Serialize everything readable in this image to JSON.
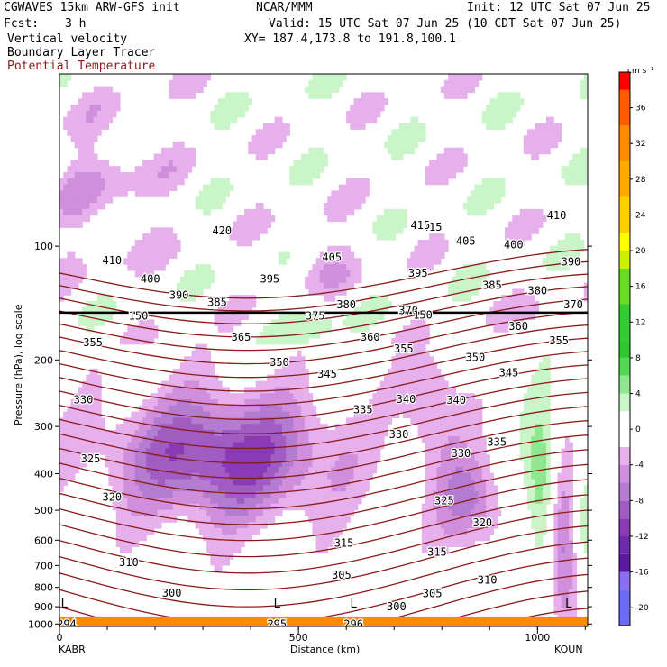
{
  "header": {
    "model": "CGWAVES 15km ARW-GFS init",
    "org": "NCAR/MMM",
    "init": "Init: 12 UTC Sat 07 Jun 25",
    "fcst_label": "Fcst:",
    "fcst_value": "3 h",
    "valid": "Valid: 15 UTC Sat 07 Jun 25 (10 CDT Sat 07 Jun 25)",
    "field1": "Vertical velocity",
    "field2": "Boundary Layer Tracer",
    "field3": "Potential Temperature",
    "xy": "XY= 187.4,173.8 to 191.8,100.1"
  },
  "colors": {
    "theta": "#8b1a1a",
    "field3_text": "#8b1a1a",
    "terrain": "#ff8c00",
    "frame": "#000000"
  },
  "chart_data": {
    "type": "heatmap",
    "title": "Vertical velocity",
    "xlabel": "Distance (km)",
    "ylabel": "Pressure (hPa), log scale",
    "x_ticks": [
      "0",
      "500",
      "1000"
    ],
    "x_range": [
      0,
      1105
    ],
    "y_ticks": [
      "100",
      "200",
      "300",
      "400",
      "500",
      "600",
      "700",
      "800",
      "900",
      "1000"
    ],
    "y_scale": "log",
    "y_range_hpa": [
      1015,
      35
    ],
    "start_label": "KABR",
    "end_label": "KOUN",
    "tropopause_hpa": 150,
    "colorbar": {
      "unit": "cm s⁻¹",
      "tick_labels": [
        "36",
        "32",
        "28",
        "24",
        "20",
        "16",
        "12",
        "8",
        "4",
        "0",
        "-4",
        "-8",
        "-12",
        "-16",
        "-20"
      ],
      "tick_values": [
        36,
        32,
        28,
        24,
        20,
        16,
        12,
        8,
        4,
        0,
        -4,
        -8,
        -12,
        -16,
        -20
      ],
      "levels": [
        {
          "lo": -22,
          "color": "#6a6af5"
        },
        {
          "lo": -18,
          "color": "#8a70f0"
        },
        {
          "lo": -16,
          "color": "#5a1aa0"
        },
        {
          "lo": -14,
          "color": "#6e2aa8"
        },
        {
          "lo": -12,
          "color": "#8a3ab5"
        },
        {
          "lo": -10,
          "color": "#a05cc2"
        },
        {
          "lo": -8,
          "color": "#b47cd0"
        },
        {
          "lo": -6,
          "color": "#cf8fdc"
        },
        {
          "lo": -4,
          "color": "#e6b0ec"
        },
        {
          "lo": -2,
          "color": "#ffffff"
        },
        {
          "lo": 2,
          "color": "#c9f5c9"
        },
        {
          "lo": 4,
          "color": "#8fe88f"
        },
        {
          "lo": 6,
          "color": "#55d855"
        },
        {
          "lo": 8,
          "color": "#2ec82e"
        },
        {
          "lo": 10,
          "color": "#33cc33"
        },
        {
          "lo": 14,
          "color": "#66dd22"
        },
        {
          "lo": 18,
          "color": "#ccee00"
        },
        {
          "lo": 20,
          "color": "#ffff00"
        },
        {
          "lo": 22,
          "color": "#ffd000"
        },
        {
          "lo": 26,
          "color": "#ffaa00"
        },
        {
          "lo": 30,
          "color": "#ff8c00"
        },
        {
          "lo": 34,
          "color": "#ff5a00"
        },
        {
          "lo": 38,
          "color": "#ff0000"
        }
      ]
    },
    "theta_labels": [
      {
        "text": "420",
        "x": 340,
        "p": 91
      },
      {
        "text": "415",
        "x": 780,
        "p": 89
      },
      {
        "text": "415",
        "x": 755,
        "p": 88
      },
      {
        "text": "410",
        "x": 110,
        "p": 109
      },
      {
        "text": "410",
        "x": 1040,
        "p": 83
      },
      {
        "text": "405",
        "x": 570,
        "p": 107
      },
      {
        "text": "405",
        "x": 850,
        "p": 97
      },
      {
        "text": "400",
        "x": 190,
        "p": 122
      },
      {
        "text": "400",
        "x": 950,
        "p": 99
      },
      {
        "text": "395",
        "x": 440,
        "p": 122
      },
      {
        "text": "395",
        "x": 750,
        "p": 118
      },
      {
        "text": "390",
        "x": 250,
        "p": 135
      },
      {
        "text": "390",
        "x": 1070,
        "p": 110
      },
      {
        "text": "385",
        "x": 330,
        "p": 141
      },
      {
        "text": "385",
        "x": 905,
        "p": 127
      },
      {
        "text": "380",
        "x": 600,
        "p": 143
      },
      {
        "text": "380",
        "x": 1000,
        "p": 131
      },
      {
        "text": "375",
        "x": 535,
        "p": 153
      },
      {
        "text": "370",
        "x": 730,
        "p": 148
      },
      {
        "text": "370",
        "x": 1075,
        "p": 143
      },
      {
        "text": "365",
        "x": 380,
        "p": 174
      },
      {
        "text": "360",
        "x": 650,
        "p": 174
      },
      {
        "text": "360",
        "x": 960,
        "p": 163
      },
      {
        "text": "355",
        "x": 70,
        "p": 180
      },
      {
        "text": "355",
        "x": 720,
        "p": 187
      },
      {
        "text": "355",
        "x": 1045,
        "p": 178
      },
      {
        "text": "350",
        "x": 460,
        "p": 203
      },
      {
        "text": "350",
        "x": 870,
        "p": 197
      },
      {
        "text": "345",
        "x": 560,
        "p": 218
      },
      {
        "text": "345",
        "x": 940,
        "p": 216
      },
      {
        "text": "340",
        "x": 725,
        "p": 254
      },
      {
        "text": "340",
        "x": 830,
        "p": 256
      },
      {
        "text": "335",
        "x": 635,
        "p": 271
      },
      {
        "text": "335",
        "x": 915,
        "p": 330
      },
      {
        "text": "330",
        "x": 50,
        "p": 255
      },
      {
        "text": "330",
        "x": 710,
        "p": 315
      },
      {
        "text": "330",
        "x": 840,
        "p": 354
      },
      {
        "text": "325",
        "x": 65,
        "p": 365
      },
      {
        "text": "325",
        "x": 805,
        "p": 472
      },
      {
        "text": "320",
        "x": 110,
        "p": 462
      },
      {
        "text": "320",
        "x": 885,
        "p": 540
      },
      {
        "text": "315",
        "x": 595,
        "p": 610
      },
      {
        "text": "315",
        "x": 790,
        "p": 645
      },
      {
        "text": "310",
        "x": 145,
        "p": 688
      },
      {
        "text": "310",
        "x": 895,
        "p": 764
      },
      {
        "text": "305",
        "x": 590,
        "p": 742
      },
      {
        "text": "305",
        "x": 780,
        "p": 830
      },
      {
        "text": "300",
        "x": 235,
        "p": 828
      },
      {
        "text": "300",
        "x": 705,
        "p": 900
      },
      {
        "text": "295",
        "x": 455,
        "p": 1000
      },
      {
        "text": "296",
        "x": 615,
        "p": 1000
      },
      {
        "text": "294",
        "x": 15,
        "p": 1000
      },
      {
        "text": "150",
        "x": 165,
        "p": 153
      },
      {
        "text": "150",
        "x": 760,
        "p": 152
      }
    ],
    "lows": [
      {
        "text": "L",
        "x": 10,
        "p": 905
      },
      {
        "text": "L",
        "x": 455,
        "p": 905
      },
      {
        "text": "L",
        "x": 615,
        "p": 905
      },
      {
        "text": "L",
        "x": 1065,
        "p": 905
      }
    ]
  }
}
